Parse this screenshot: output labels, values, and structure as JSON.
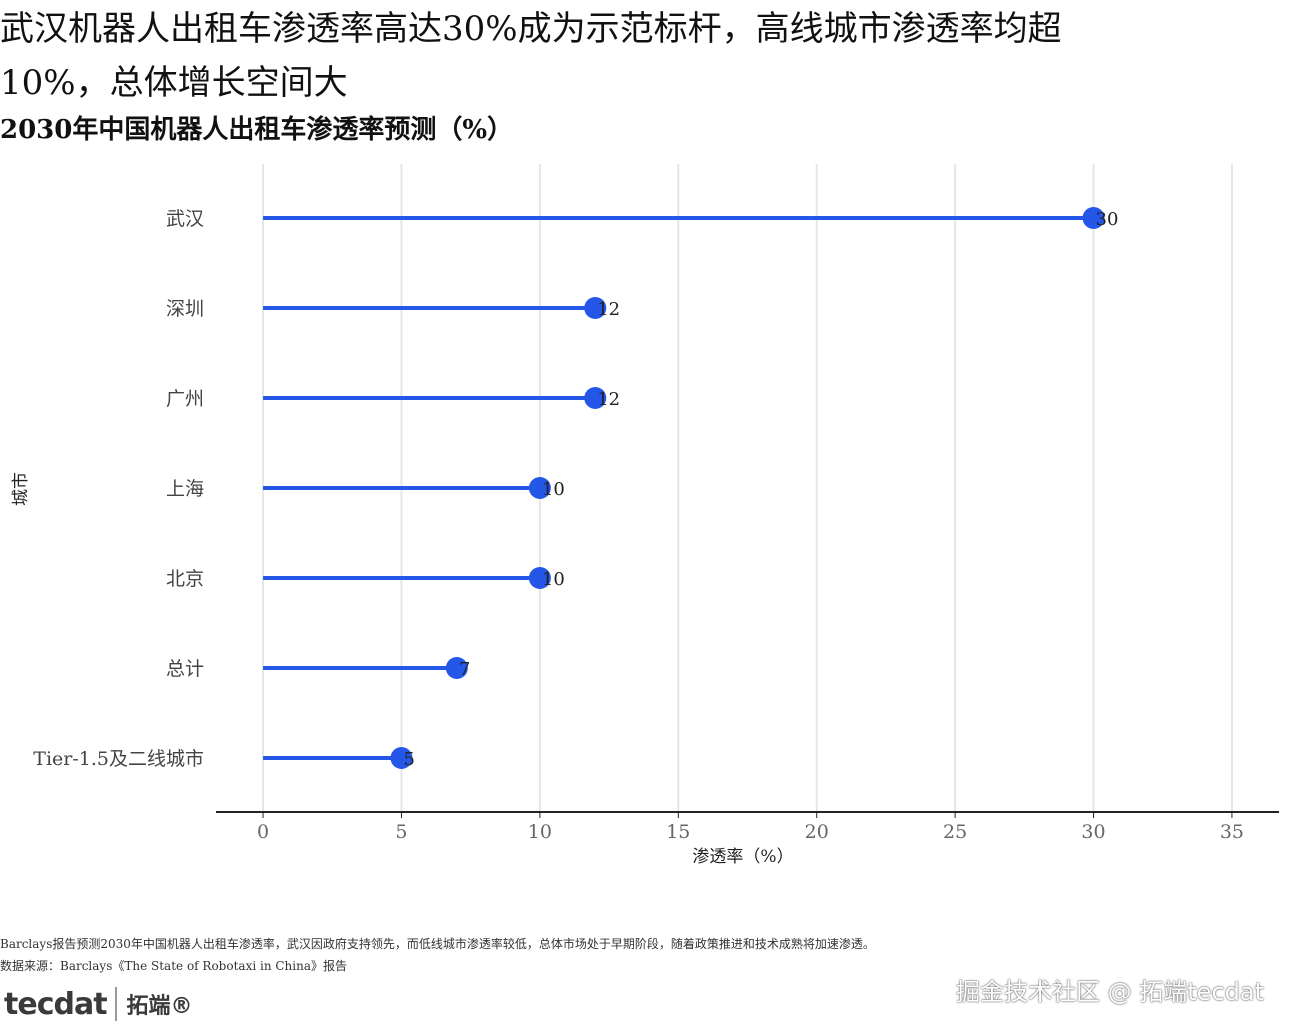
{
  "title": "武汉机器人出租车渗透率高达30%成为示范标杆，高线城市渗透率均超10%，总体增长空间大",
  "subtitle": "2030年中国机器人出租车渗透率预测（%）",
  "chart_data": {
    "type": "lollipop",
    "orientation": "horizontal",
    "categories": [
      "武汉",
      "深圳",
      "广州",
      "上海",
      "北京",
      "总计",
      "Tier-1.5及二线城市"
    ],
    "values": [
      30,
      12,
      12,
      10,
      10,
      7,
      5
    ],
    "data_labels": [
      "30",
      "12",
      "12",
      "10",
      "10",
      "7",
      "5"
    ],
    "xlabel": "渗透率（%）",
    "ylabel": "城市",
    "xlim": [
      -1.7,
      36.7
    ],
    "xticks": [
      0,
      5,
      10,
      15,
      20,
      25,
      30,
      35
    ],
    "xtick_labels": [
      "0",
      "5",
      "10",
      "15",
      "20",
      "25",
      "30",
      "35"
    ],
    "grid": "vertical",
    "legend": "none",
    "colors": {
      "series": "#2457e8",
      "grid": "#e6e6e6",
      "axis": "#222222",
      "tick_label": "#666666"
    }
  },
  "footnote": {
    "note": "Barclays报告预测2030年中国机器人出租车渗透率，武汉因政府支持领先，而低线城市渗透率较低，总体市场处于早期阶段，随着政策推进和技术成熟将加速渗透。",
    "source": "数据来源：Barclays《The State of Robotaxi in China》报告"
  },
  "logo": {
    "mark": "tecdat",
    "cn": "拓端®"
  },
  "watermark": "掘金技术社区 @ 拓端tecdat"
}
